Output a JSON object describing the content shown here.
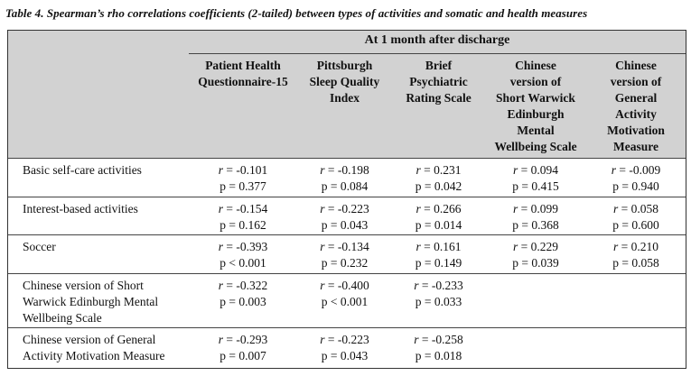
{
  "caption": "Table 4. Spearman’s rho correlations coefficients (2-tailed) between types of activities and somatic and health measures",
  "group_header": "At 1 month after discharge",
  "columns": [
    "Patient Health Questionnaire-15",
    "Pittsburgh Sleep Quality Index",
    "Brief Psychiatric Rating Scale",
    "Chinese version of Short Warwick Edinburgh Mental Wellbeing Scale",
    "Chinese version of General Activity Motivation Measure"
  ],
  "column_lines": [
    [
      "Patient Health",
      "Questionnaire-15"
    ],
    [
      "Pittsburgh",
      "Sleep Quality",
      "Index"
    ],
    [
      "Brief",
      "Psychiatric",
      "Rating Scale"
    ],
    [
      "Chinese",
      "version of",
      "Short Warwick",
      "Edinburgh",
      "Mental",
      "Wellbeing Scale"
    ],
    [
      "Chinese",
      "version of",
      "General",
      "Activity",
      "Motivation",
      "Measure"
    ]
  ],
  "r_symbol": "r",
  "rows": [
    {
      "label_lines": [
        "Basic self-care activities"
      ],
      "cells": [
        {
          "r": "= -0.101",
          "p": "p = 0.377"
        },
        {
          "r": "= -0.198",
          "p": "p = 0.084"
        },
        {
          "r": "= 0.231",
          "p": "p = 0.042"
        },
        {
          "r": "= 0.094",
          "p": "p = 0.415"
        },
        {
          "r": "= -0.009",
          "p": "p = 0.940"
        }
      ]
    },
    {
      "label_lines": [
        "Interest-based activities"
      ],
      "cells": [
        {
          "r": "= -0.154",
          "p": "p = 0.162"
        },
        {
          "r": "= -0.223",
          "p": "p = 0.043"
        },
        {
          "r": "= 0.266",
          "p": "p = 0.014"
        },
        {
          "r": "= 0.099",
          "p": "p = 0.368"
        },
        {
          "r": "= 0.058",
          "p": "p = 0.600"
        }
      ]
    },
    {
      "label_lines": [
        "Soccer"
      ],
      "cells": [
        {
          "r": "= -0.393",
          "p": "p < 0.001"
        },
        {
          "r": "= -0.134",
          "p": "p = 0.232"
        },
        {
          "r": "= 0.161",
          "p": "p = 0.149"
        },
        {
          "r": "= 0.229",
          "p": "p = 0.039"
        },
        {
          "r": "= 0.210",
          "p": "p = 0.058"
        }
      ]
    },
    {
      "label_lines": [
        "Chinese version of Short",
        "Warwick Edinburgh Mental",
        "Wellbeing Scale"
      ],
      "cells": [
        {
          "r": "= -0.322",
          "p": "p = 0.003"
        },
        {
          "r": "= -0.400",
          "p": "p < 0.001"
        },
        {
          "r": "= -0.233",
          "p": "p = 0.033"
        }
      ]
    },
    {
      "label_lines": [
        "Chinese version of General",
        "Activity Motivation Measure"
      ],
      "cells": [
        {
          "r": "= -0.293",
          "p": "p = 0.007"
        },
        {
          "r": "= -0.223",
          "p": "p = 0.043"
        },
        {
          "r": "= -0.258",
          "p": "p = 0.018"
        }
      ]
    }
  ]
}
